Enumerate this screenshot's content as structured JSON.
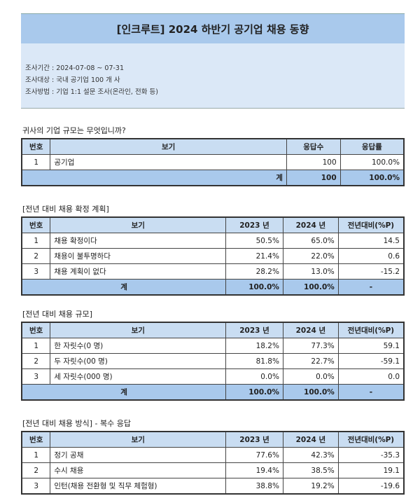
{
  "title": "[인크루트] 2024 하반기 공기업 채용 동향",
  "info": [
    "조사기간 : 2024-07-08 ~ 07-31",
    "조사대상 : 국내 공기업 100 개 사",
    "조사방법 : 기업 1:1 설문 조사(온라인, 전화 등)"
  ],
  "t1": {
    "label": "귀사의 기업 규모는 무엇입니까?",
    "headers": [
      "번호",
      "보기",
      "응답수",
      "응답률"
    ],
    "rows": [
      [
        "1",
        "공기업",
        "100",
        "100.0%"
      ]
    ],
    "total": [
      "계",
      "100",
      "100.0%"
    ]
  },
  "t2": {
    "label": "[전년 대비 채용 확정 계획]",
    "headers": [
      "번호",
      "보기",
      "2023 년",
      "2024 년",
      "전년대비(%P)"
    ],
    "rows": [
      [
        "1",
        "채용 확정이다",
        "50.5%",
        "65.0%",
        "14.5"
      ],
      [
        "2",
        "채용이 불투명하다",
        "21.4%",
        "22.0%",
        "0.6"
      ],
      [
        "3",
        "채용 계획이 없다",
        "28.2%",
        "13.0%",
        "-15.2"
      ]
    ],
    "total": [
      "계",
      "100.0%",
      "100.0%",
      "-"
    ]
  },
  "t3": {
    "label": "[전년 대비 채용 규모]",
    "headers": [
      "번호",
      "보기",
      "2023 년",
      "2024 년",
      "전년대비(%P)"
    ],
    "rows": [
      [
        "1",
        "한 자릿수(0 명)",
        "18.2%",
        "77.3%",
        "59.1"
      ],
      [
        "2",
        "두 자릿수(00 명)",
        "81.8%",
        "22.7%",
        "-59.1"
      ],
      [
        "3",
        "세 자릿수(000 명)",
        "0.0%",
        "0.0%",
        "0.0"
      ]
    ],
    "total": [
      "계",
      "100.0%",
      "100.0%",
      "-"
    ]
  },
  "t4": {
    "label": "[전년 대비 채용 방식] - 복수 응답",
    "headers": [
      "번호",
      "보기",
      "2023 년",
      "2024 년",
      "전년대비(%P)"
    ],
    "rows": [
      [
        "1",
        "정기 공채",
        "77.6%",
        "42.3%",
        "-35.3"
      ],
      [
        "2",
        "수시 채용",
        "19.4%",
        "38.5%",
        "19.1"
      ],
      [
        "3",
        "인턴(채용 전환형 및 직무 체험형)",
        "38.8%",
        "19.2%",
        "-19.6"
      ]
    ]
  }
}
